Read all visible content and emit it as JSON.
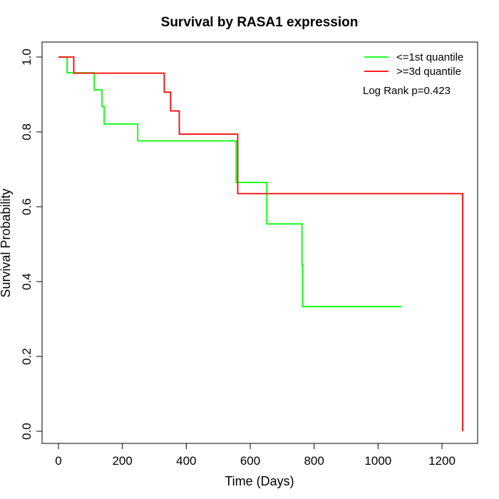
{
  "chart_data": {
    "type": "line",
    "title": "Survival by RASA1 expression",
    "xlabel": "Time (Days)",
    "ylabel": "Survival Probability",
    "xlim": [
      0,
      1300
    ],
    "ylim": [
      0,
      1.0
    ],
    "xticks": [
      0,
      200,
      400,
      600,
      800,
      1000,
      1200
    ],
    "xtick_labels": [
      "0",
      "200",
      "400",
      "600",
      "800",
      "1000",
      "1200"
    ],
    "yticks": [
      0.0,
      0.2,
      0.4,
      0.6,
      0.8,
      1.0
    ],
    "ytick_labels": [
      "0.0",
      "0.2",
      "0.4",
      "0.6",
      "0.8",
      "1.0"
    ],
    "grid": false,
    "legend_position": "top-right",
    "annotation": "Log Rank p=0.423",
    "series": [
      {
        "name": "<=1st quantile",
        "color": "#00ff00",
        "step": true,
        "x": [
          0,
          27,
          27,
          112,
          112,
          136,
          136,
          143,
          143,
          248,
          248,
          556,
          556,
          652,
          652,
          762,
          762,
          764,
          764,
          1073
        ],
        "y": [
          1.0,
          1.0,
          0.958,
          0.958,
          0.912,
          0.912,
          0.868,
          0.868,
          0.821,
          0.821,
          0.776,
          0.776,
          0.665,
          0.665,
          0.554,
          0.554,
          0.445,
          0.445,
          0.333,
          0.333
        ]
      },
      {
        "name": ">=3d quantile",
        "color": "#ff0000",
        "step": true,
        "x": [
          0,
          48,
          48,
          331,
          331,
          351,
          351,
          378,
          378,
          561,
          561,
          1265,
          1265
        ],
        "y": [
          1.0,
          1.0,
          0.957,
          0.957,
          0.906,
          0.906,
          0.856,
          0.856,
          0.794,
          0.794,
          0.635,
          0.635,
          0.0
        ]
      }
    ]
  }
}
